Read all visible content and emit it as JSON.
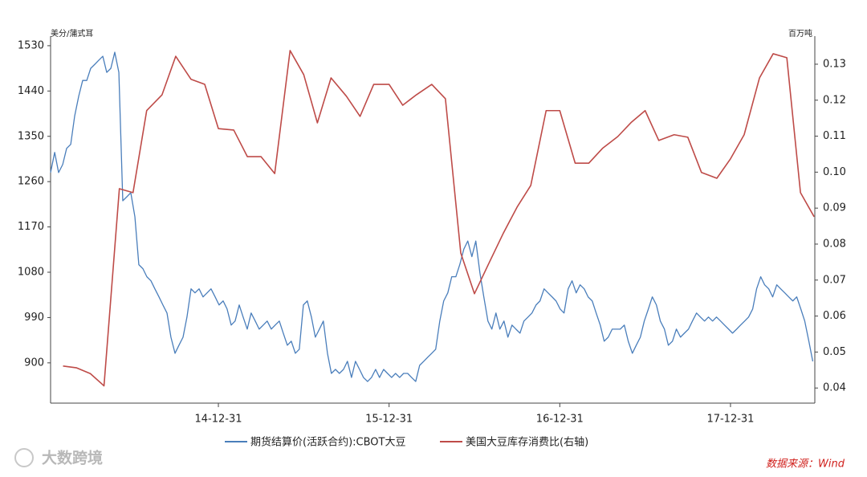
{
  "chart_data": {
    "type": "line",
    "y_axis_label": "美分/蒲式耳",
    "y2_axis_label": "百万吨",
    "source": "数据来源：Wind",
    "watermark": "大数跨境",
    "xlim": [
      2014.017,
      2018.494
    ],
    "xticks": [
      {
        "value": 2015.0,
        "label": "14-12-31"
      },
      {
        "value": 2016.0,
        "label": "15-12-31"
      },
      {
        "value": 2017.0,
        "label": "16-12-31"
      },
      {
        "value": 2018.0,
        "label": "17-12-31"
      }
    ],
    "ylim": [
      820,
      1549
    ],
    "yticks": [
      900,
      990,
      1080,
      1170,
      1260,
      1350,
      1440,
      1530
    ],
    "y2lim": [
      0.0358,
      0.1378
    ],
    "y2ticks": [
      0.04,
      0.05,
      0.06,
      0.07,
      0.08,
      0.09,
      {
        "value": 0.1,
        "label": "0.10"
      },
      0.11,
      0.12,
      0.13
    ],
    "series": [
      {
        "name": "期货结算价(活跃合约):CBOT大豆",
        "color": "#4a7ebb",
        "axis": "y",
        "x": [
          2014.017,
          2014.041,
          2014.064,
          2014.088,
          2014.111,
          2014.135,
          2014.158,
          2014.182,
          2014.205,
          2014.229,
          2014.252,
          2014.276,
          2014.299,
          2014.323,
          2014.346,
          2014.37,
          2014.393,
          2014.417,
          2014.44,
          2014.464,
          2014.487,
          2014.511,
          2014.534,
          2014.558,
          2014.581,
          2014.605,
          2014.628,
          2014.652,
          2014.675,
          2014.699,
          2014.722,
          2014.746,
          2014.769,
          2014.793,
          2014.816,
          2014.84,
          2014.863,
          2014.887,
          2014.91,
          2014.934,
          2014.957,
          2014.981,
          2015.004,
          2015.028,
          2015.051,
          2015.075,
          2015.098,
          2015.122,
          2015.145,
          2015.169,
          2015.192,
          2015.216,
          2015.239,
          2015.263,
          2015.286,
          2015.31,
          2015.333,
          2015.357,
          2015.38,
          2015.404,
          2015.427,
          2015.451,
          2015.474,
          2015.498,
          2015.521,
          2015.545,
          2015.568,
          2015.592,
          2015.615,
          2015.639,
          2015.662,
          2015.686,
          2015.709,
          2015.733,
          2015.756,
          2015.78,
          2015.803,
          2015.827,
          2015.85,
          2015.874,
          2015.897,
          2015.921,
          2015.944,
          2015.968,
          2015.991,
          2016.015,
          2016.038,
          2016.062,
          2016.085,
          2016.109,
          2016.132,
          2016.156,
          2016.179,
          2016.203,
          2016.226,
          2016.25,
          2016.273,
          2016.297,
          2016.32,
          2016.344,
          2016.367,
          2016.391,
          2016.414,
          2016.438,
          2016.461,
          2016.485,
          2016.508,
          2016.532,
          2016.555,
          2016.579,
          2016.602,
          2016.626,
          2016.649,
          2016.673,
          2016.696,
          2016.72,
          2016.743,
          2016.767,
          2016.79,
          2016.814,
          2016.837,
          2016.861,
          2016.884,
          2016.908,
          2016.931,
          2016.955,
          2016.978,
          2017.002,
          2017.025,
          2017.049,
          2017.072,
          2017.096,
          2017.119,
          2017.143,
          2017.166,
          2017.19,
          2017.213,
          2017.237,
          2017.26,
          2017.284,
          2017.307,
          2017.331,
          2017.354,
          2017.378,
          2017.401,
          2017.425,
          2017.448,
          2017.472,
          2017.495,
          2017.519,
          2017.542,
          2017.566,
          2017.589,
          2017.613,
          2017.636,
          2017.66,
          2017.683,
          2017.707,
          2017.73,
          2017.754,
          2017.777,
          2017.801,
          2017.824,
          2017.848,
          2017.871,
          2017.895,
          2017.918,
          2017.942,
          2017.965,
          2017.989,
          2018.012,
          2018.036,
          2018.059,
          2018.083,
          2018.106,
          2018.13,
          2018.153,
          2018.177,
          2018.2,
          2018.224,
          2018.247,
          2018.271,
          2018.294,
          2018.318,
          2018.341,
          2018.365,
          2018.388,
          2018.412,
          2018.435,
          2018.459,
          2018.482
        ],
        "values": [
          1278,
          1318,
          1278,
          1294,
          1326,
          1334,
          1390,
          1430,
          1461,
          1461,
          1485,
          1493,
          1501,
          1509,
          1477,
          1485,
          1517,
          1477,
          1222,
          1230,
          1238,
          1190,
          1095,
          1087,
          1071,
          1063,
          1047,
          1031,
          1015,
          999,
          951,
          919,
          935,
          951,
          991,
          1047,
          1039,
          1047,
          1031,
          1039,
          1047,
          1031,
          1015,
          1023,
          1007,
          975,
          983,
          1015,
          991,
          967,
          999,
          983,
          967,
          975,
          983,
          967,
          975,
          983,
          959,
          935,
          943,
          919,
          927,
          1015,
          1023,
          991,
          951,
          967,
          983,
          919,
          879,
          887,
          879,
          887,
          903,
          871,
          903,
          887,
          871,
          863,
          871,
          887,
          871,
          887,
          879,
          871,
          879,
          871,
          879,
          879,
          871,
          863,
          895,
          903,
          911,
          919,
          927,
          983,
          1023,
          1039,
          1071,
          1071,
          1095,
          1126,
          1142,
          1111,
          1142,
          1079,
          1031,
          983,
          967,
          999,
          967,
          983,
          951,
          975,
          967,
          959,
          983,
          991,
          999,
          1015,
          1023,
          1047,
          1039,
          1031,
          1023,
          1007,
          999,
          1047,
          1063,
          1039,
          1055,
          1047,
          1031,
          1023,
          999,
          975,
          943,
          951,
          967,
          967,
          967,
          975,
          943,
          919,
          935,
          951,
          983,
          1007,
          1031,
          1015,
          983,
          967,
          935,
          943,
          967,
          951,
          959,
          967,
          983,
          999,
          991,
          983,
          991,
          983,
          991,
          983,
          975,
          967,
          959,
          967,
          975,
          983,
          991,
          1007,
          1047,
          1071,
          1055,
          1047,
          1031,
          1055,
          1047,
          1039,
          1031,
          1023,
          1031,
          1007,
          983,
          943,
          903
        ]
      },
      {
        "name": "美国大豆库存消费比(右轴)",
        "color": "#be4b48",
        "axis": "y2",
        "x": [
          2014.09,
          2014.17,
          2014.25,
          2014.33,
          2014.42,
          2014.5,
          2014.58,
          2014.67,
          2014.75,
          2014.84,
          2014.92,
          2015.0,
          2015.09,
          2015.17,
          2015.25,
          2015.33,
          2015.42,
          2015.5,
          2015.58,
          2015.66,
          2015.75,
          2015.83,
          2015.91,
          2016.0,
          2016.08,
          2016.16,
          2016.25,
          2016.33,
          2016.42,
          2016.5,
          2016.58,
          2016.67,
          2016.75,
          2016.83,
          2016.92,
          2017.0,
          2017.09,
          2017.17,
          2017.25,
          2017.34,
          2017.42,
          2017.5,
          2017.58,
          2017.67,
          2017.75,
          2017.83,
          2017.92,
          2018.0,
          2018.08,
          2018.17,
          2018.25,
          2018.33,
          2018.41,
          2018.49
        ],
        "values": [
          0.0461,
          0.0456,
          0.044,
          0.0406,
          0.0954,
          0.0943,
          0.1171,
          0.1215,
          0.1322,
          0.1258,
          0.1244,
          0.1121,
          0.1117,
          0.1043,
          0.1043,
          0.0996,
          0.1338,
          0.1271,
          0.1137,
          0.1262,
          0.1211,
          0.1155,
          0.1244,
          0.1244,
          0.1186,
          0.1215,
          0.1244,
          0.1204,
          0.0775,
          0.0662,
          0.0742,
          0.0831,
          0.0903,
          0.0963,
          0.1171,
          0.1171,
          0.1025,
          0.1025,
          0.1066,
          0.1099,
          0.1139,
          0.1171,
          0.1088,
          0.1104,
          0.1097,
          0.0999,
          0.0983,
          0.1037,
          0.1104,
          0.1262,
          0.1329,
          0.1318,
          0.0943,
          0.0876
        ]
      }
    ]
  }
}
